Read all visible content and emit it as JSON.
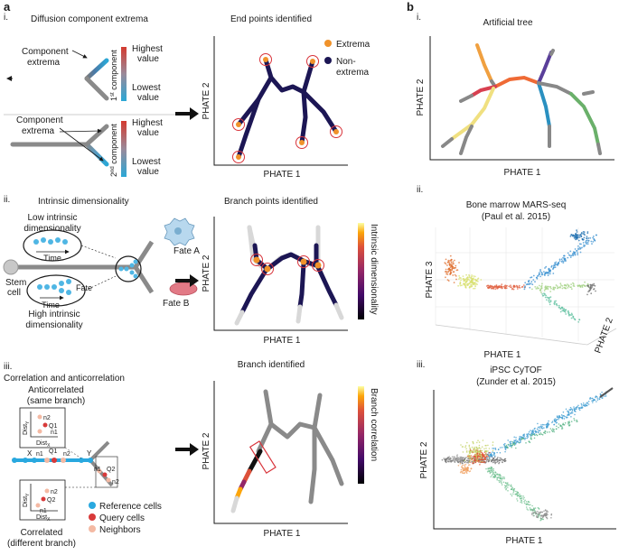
{
  "panel_a": {
    "letter": "a",
    "i": {
      "roman": "i.",
      "title": "Diffusion component extrema",
      "component_extrema_1": [
        "Component",
        "extrema"
      ],
      "component_extrema_2": [
        "Component",
        "extrema"
      ],
      "colorbar1": {
        "high": [
          "Highest",
          "value"
        ],
        "low": [
          "Lowest",
          "value"
        ],
        "label_num": "1",
        "label_sup": "st",
        "label_rest": " component"
      },
      "colorbar2": {
        "high": [
          "Highest",
          "value"
        ],
        "low": [
          "Lowest",
          "value"
        ],
        "label_num": "2",
        "label_sup": "nd",
        "label_rest": " component"
      },
      "plot_title": "End points identified",
      "xlabel": "PHATE 1",
      "ylabel": "PHATE 2",
      "legend": {
        "extrema": "Extrema",
        "non_extrema": [
          "Non-",
          "extrema"
        ]
      }
    },
    "ii": {
      "roman": "ii.",
      "title": "Intrinsic dimensionality",
      "low": [
        "Low intrinsic",
        "dimensionality"
      ],
      "high": [
        "High intrinsic",
        "dimensionality"
      ],
      "time": "Time",
      "fate": "Fate",
      "stem": [
        "Stem",
        "cell"
      ],
      "fate_a": "Fate A",
      "fate_b": "Fate B",
      "plot_title": "Branch points identified",
      "xlabel": "PHATE 1",
      "ylabel": "PHATE 2",
      "colorbar_label": "Intrinsic dimensionality"
    },
    "iii": {
      "roman": "iii.",
      "title": "Correlation and anticorrelation",
      "anticorrelated": [
        "Anticorrelated",
        "(same branch)"
      ],
      "correlated": [
        "Correlated",
        "(different branch)"
      ],
      "dist_y": "Dist",
      "dist_x": "Dist",
      "sub_y": "Y",
      "sub_x": "X",
      "labels": {
        "x": "X",
        "y": "Y",
        "n1": "n1",
        "n2": "n2",
        "q1": "Q1",
        "q2": "Q2"
      },
      "legend": {
        "reference": "Reference cells",
        "query": "Query cells",
        "neighbors": "Neighbors"
      },
      "plot_title": "Branch identified",
      "xlabel": "PHATE 1",
      "ylabel": "PHATE 2",
      "colorbar_label": "Branch correlation"
    }
  },
  "panel_b": {
    "letter": "b",
    "i": {
      "roman": "i.",
      "title": "Artificial tree",
      "xlabel": "PHATE 1",
      "ylabel": "PHATE 2"
    },
    "ii": {
      "roman": "ii.",
      "title": [
        "Bone marrow MARS-seq",
        "(Paul et al. 2015)"
      ],
      "xlabel": "PHATE 1",
      "ylabel": "PHATE 3",
      "zlabel": "PHATE 2"
    },
    "iii": {
      "roman": "iii.",
      "title": [
        "iPSC CyTOF",
        "(Zunder et al. 2015)"
      ],
      "xlabel": "PHATE 1",
      "ylabel": "PHATE 2"
    }
  },
  "colors": {
    "tree_dark": "#1c1654",
    "extrema": "#f0922a",
    "ring": "#d8343b",
    "reference": "#29a8df",
    "query": "#d83a3a",
    "neighbors": "#f4b9a3",
    "gray_branch": "#8a8a8a"
  }
}
